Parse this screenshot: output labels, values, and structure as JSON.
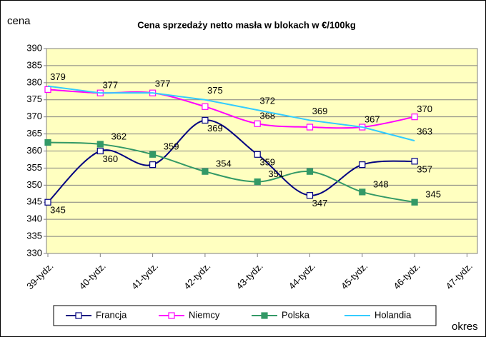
{
  "chart_data": {
    "type": "line",
    "title": "Cena sprzedaży netto masła w blokach w €/100kg",
    "ylabel": "cena",
    "xlabel": "okres",
    "categories": [
      "39-tydz.",
      "40-tydz.",
      "41-tydz.",
      "42-tydz.",
      "43-tydz.",
      "44-tydz.",
      "45-tydz.",
      "46-tydz.",
      "47-tydz."
    ],
    "series": [
      {
        "name": "Francja",
        "color": "#000080",
        "marker": "square-open",
        "smooth": true,
        "values": [
          345,
          360,
          356,
          369,
          359,
          347,
          356,
          357,
          null
        ],
        "value_labels": [
          "345",
          "360",
          null,
          "369",
          "359",
          "347",
          null,
          "357",
          null
        ]
      },
      {
        "name": "Niemcy",
        "color": "#ff00ff",
        "marker": "square-open",
        "smooth": true,
        "values": [
          378,
          377,
          377,
          373,
          368,
          367,
          367,
          370,
          null
        ],
        "value_labels": [
          null,
          "377",
          null,
          null,
          "368",
          null,
          "367",
          "370",
          null
        ]
      },
      {
        "name": "Polska",
        "color": "#339966",
        "marker": "square-filled",
        "smooth": true,
        "values": [
          362.5,
          362,
          359,
          354,
          351,
          354,
          348,
          345,
          null
        ],
        "value_labels": [
          null,
          "362",
          "359",
          "354",
          "351",
          null,
          "348",
          "345",
          null
        ]
      },
      {
        "name": "Holandia",
        "color": "#33ccff",
        "marker": "none",
        "smooth": false,
        "values": [
          379,
          377,
          377,
          375,
          372,
          369,
          367,
          363,
          null
        ],
        "value_labels": [
          "379",
          null,
          "377",
          "375",
          "372",
          "369",
          null,
          "363",
          null
        ]
      }
    ],
    "ylim": [
      330,
      390
    ],
    "yticks": [
      330,
      335,
      340,
      345,
      350,
      355,
      360,
      365,
      370,
      375,
      380,
      385,
      390
    ],
    "grid": true,
    "legend": "bottom"
  }
}
